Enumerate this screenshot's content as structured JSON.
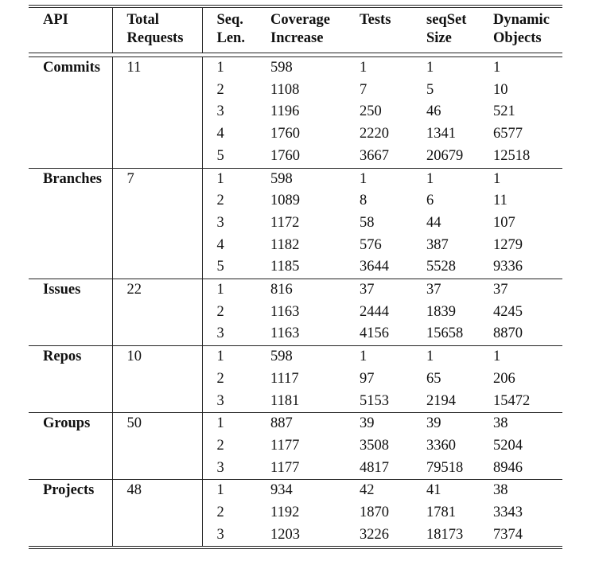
{
  "table": {
    "headers": [
      [
        "API"
      ],
      [
        "Total",
        "Requests"
      ],
      [
        "Seq.",
        "Len."
      ],
      [
        "Coverage",
        "Increase"
      ],
      [
        "Tests"
      ],
      [
        "seqSet",
        "Size"
      ],
      [
        "Dynamic",
        "Objects"
      ]
    ],
    "groups": [
      {
        "api": "Commits",
        "total_requests": "11",
        "rows": [
          [
            "1",
            "598",
            "1",
            "1",
            "1"
          ],
          [
            "2",
            "1108",
            "7",
            "5",
            "10"
          ],
          [
            "3",
            "1196",
            "250",
            "46",
            "521"
          ],
          [
            "4",
            "1760",
            "2220",
            "1341",
            "6577"
          ],
          [
            "5",
            "1760",
            "3667",
            "20679",
            "12518"
          ]
        ]
      },
      {
        "api": "Branches",
        "total_requests": "7",
        "rows": [
          [
            "1",
            "598",
            "1",
            "1",
            "1"
          ],
          [
            "2",
            "1089",
            "8",
            "6",
            "11"
          ],
          [
            "3",
            "1172",
            "58",
            "44",
            "107"
          ],
          [
            "4",
            "1182",
            "576",
            "387",
            "1279"
          ],
          [
            "5",
            "1185",
            "3644",
            "5528",
            "9336"
          ]
        ]
      },
      {
        "api": "Issues",
        "total_requests": "22",
        "rows": [
          [
            "1",
            "816",
            "37",
            "37",
            "37"
          ],
          [
            "2",
            "1163",
            "2444",
            "1839",
            "4245"
          ],
          [
            "3",
            "1163",
            "4156",
            "15658",
            "8870"
          ]
        ]
      },
      {
        "api": "Repos",
        "total_requests": "10",
        "rows": [
          [
            "1",
            "598",
            "1",
            "1",
            "1"
          ],
          [
            "2",
            "1117",
            "97",
            "65",
            "206"
          ],
          [
            "3",
            "1181",
            "5153",
            "2194",
            "15472"
          ]
        ]
      },
      {
        "api": "Groups",
        "total_requests": "50",
        "rows": [
          [
            "1",
            "887",
            "39",
            "39",
            "38"
          ],
          [
            "2",
            "1177",
            "3508",
            "3360",
            "5204"
          ],
          [
            "3",
            "1177",
            "4817",
            "79518",
            "8946"
          ]
        ]
      },
      {
        "api": "Projects",
        "total_requests": "48",
        "rows": [
          [
            "1",
            "934",
            "42",
            "41",
            "38"
          ],
          [
            "2",
            "1192",
            "1870",
            "1781",
            "3343"
          ],
          [
            "3",
            "1203",
            "3226",
            "18173",
            "7374"
          ]
        ]
      }
    ]
  }
}
